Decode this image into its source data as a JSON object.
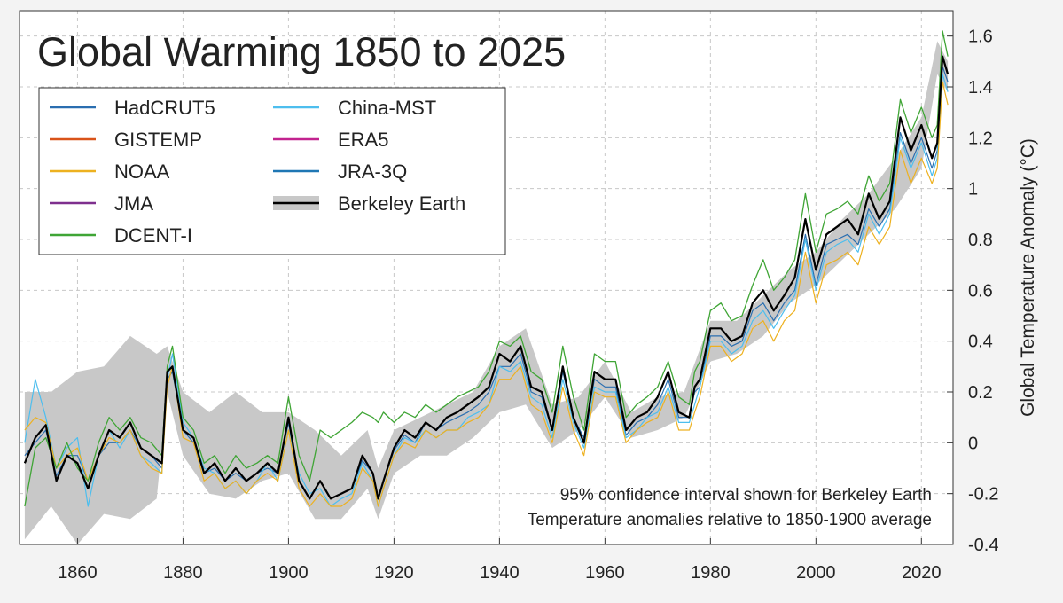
{
  "chart_data": {
    "type": "line",
    "title": "Global Warming 1850 to 2025",
    "xlabel": "",
    "ylabel": "Global  Temperature  Anomaly  (°C)",
    "xlim": [
      1849,
      2026
    ],
    "ylim": [
      -0.4,
      1.7
    ],
    "x_ticks": [
      1860,
      1880,
      1900,
      1920,
      1940,
      1960,
      1980,
      2000,
      2020
    ],
    "x_tick_labels": [
      "1860",
      "1880",
      "1900",
      "1920",
      "1940",
      "1960",
      "1980",
      "2000",
      "2020"
    ],
    "y_ticks": [
      -0.4,
      -0.2,
      0,
      0.2,
      0.4,
      0.6,
      0.8,
      1,
      1.2,
      1.4,
      1.6
    ],
    "y_tick_labels": [
      "-0.4",
      "-0.2",
      "0",
      "0.2",
      "0.4",
      "0.6",
      "0.8",
      "1",
      "1.2",
      "1.4",
      "1.6"
    ],
    "grid": true,
    "y_axis_side": "right",
    "legend_position": "top-left",
    "annotations": [
      "95% confidence interval shown for Berkeley Earth",
      "Temperature anomalies relative to 1850-1900 average"
    ],
    "legend_items": [
      {
        "name": "HadCRUT5",
        "color": "#2a6eb0",
        "kind": "line"
      },
      {
        "name": "GISTEMP",
        "color": "#d95319",
        "kind": "line"
      },
      {
        "name": "NOAA",
        "color": "#edb120",
        "kind": "line"
      },
      {
        "name": "JMA",
        "color": "#7e2f8e",
        "kind": "line"
      },
      {
        "name": "DCENT-I",
        "color": "#3fa535",
        "kind": "line"
      },
      {
        "name": "China-MST",
        "color": "#4dbeee",
        "kind": "line"
      },
      {
        "name": "ERA5",
        "color": "#c2238f",
        "kind": "line"
      },
      {
        "name": "JRA-3Q",
        "color": "#1f77b4",
        "kind": "line"
      },
      {
        "name": "Berkeley Earth",
        "color": "#000000",
        "kind": "line+band",
        "band_color": "#c8c8c8"
      }
    ],
    "band": {
      "x": [
        1850,
        1855,
        1860,
        1865,
        1870,
        1875,
        1877,
        1880,
        1885,
        1890,
        1895,
        1900,
        1905,
        1910,
        1915,
        1917,
        1920,
        1925,
        1930,
        1935,
        1940,
        1945,
        1950,
        1955,
        1960,
        1965,
        1970,
        1975,
        1980,
        1985,
        1990,
        1995,
        2000,
        2005,
        2010,
        2015,
        2020,
        2023,
        2025
      ],
      "lower": [
        -0.38,
        -0.25,
        -0.4,
        -0.28,
        -0.3,
        -0.22,
        0.2,
        -0.05,
        -0.2,
        -0.22,
        -0.15,
        -0.12,
        -0.3,
        -0.3,
        -0.18,
        -0.3,
        -0.12,
        -0.05,
        -0.05,
        0.02,
        0.12,
        0.15,
        -0.02,
        0.05,
        0.18,
        0.02,
        0.05,
        0.1,
        0.32,
        0.35,
        0.42,
        0.55,
        0.62,
        0.72,
        0.82,
        0.92,
        1.08,
        1.45,
        1.38
      ],
      "upper": [
        0.2,
        0.2,
        0.28,
        0.3,
        0.42,
        0.35,
        0.38,
        0.2,
        0.12,
        0.2,
        0.12,
        0.12,
        0.05,
        -0.05,
        0.05,
        -0.1,
        0.05,
        0.1,
        0.15,
        0.2,
        0.38,
        0.45,
        0.15,
        0.18,
        0.32,
        0.12,
        0.18,
        0.2,
        0.48,
        0.48,
        0.58,
        0.68,
        0.75,
        0.88,
        0.98,
        1.12,
        1.28,
        1.58,
        1.5
      ]
    },
    "x": [
      1850,
      1852,
      1854,
      1856,
      1858,
      1860,
      1862,
      1864,
      1866,
      1868,
      1870,
      1872,
      1874,
      1876,
      1877,
      1878,
      1880,
      1882,
      1884,
      1886,
      1888,
      1890,
      1892,
      1894,
      1896,
      1898,
      1900,
      1902,
      1904,
      1906,
      1908,
      1910,
      1912,
      1914,
      1916,
      1917,
      1918,
      1920,
      1922,
      1924,
      1926,
      1928,
      1930,
      1932,
      1934,
      1936,
      1938,
      1940,
      1942,
      1944,
      1946,
      1948,
      1950,
      1952,
      1954,
      1956,
      1958,
      1960,
      1962,
      1964,
      1966,
      1968,
      1970,
      1972,
      1974,
      1976,
      1977,
      1978,
      1980,
      1982,
      1984,
      1986,
      1988,
      1990,
      1992,
      1994,
      1996,
      1998,
      2000,
      2002,
      2004,
      2006,
      2008,
      2010,
      2012,
      2014,
      2016,
      2018,
      2020,
      2022,
      2023,
      2024,
      2025
    ],
    "series": [
      {
        "name": "Berkeley Earth",
        "color": "#000000",
        "width": 2.2,
        "values": [
          -0.08,
          0.02,
          0.07,
          -0.15,
          -0.05,
          -0.08,
          -0.18,
          -0.05,
          0.05,
          0.02,
          0.08,
          -0.02,
          -0.05,
          -0.08,
          0.28,
          0.3,
          0.05,
          0.02,
          -0.12,
          -0.08,
          -0.15,
          -0.1,
          -0.15,
          -0.12,
          -0.08,
          -0.12,
          0.1,
          -0.15,
          -0.22,
          -0.15,
          -0.22,
          -0.2,
          -0.18,
          -0.05,
          -0.12,
          -0.22,
          -0.15,
          -0.02,
          0.05,
          0.02,
          0.08,
          0.05,
          0.1,
          0.12,
          0.15,
          0.18,
          0.22,
          0.35,
          0.32,
          0.38,
          0.22,
          0.2,
          0.05,
          0.3,
          0.1,
          0.0,
          0.28,
          0.25,
          0.25,
          0.05,
          0.1,
          0.12,
          0.18,
          0.28,
          0.12,
          0.1,
          0.22,
          0.25,
          0.45,
          0.45,
          0.4,
          0.42,
          0.55,
          0.6,
          0.52,
          0.58,
          0.65,
          0.88,
          0.68,
          0.82,
          0.85,
          0.88,
          0.82,
          0.98,
          0.88,
          0.95,
          1.28,
          1.15,
          1.25,
          1.12,
          1.18,
          1.52,
          1.45
        ]
      },
      {
        "name": "HadCRUT5",
        "color": "#2a6eb0",
        "width": 1.2,
        "values": [
          -0.05,
          0.0,
          0.05,
          -0.13,
          -0.05,
          -0.05,
          -0.15,
          -0.05,
          0.0,
          0.0,
          0.05,
          -0.02,
          -0.05,
          -0.1,
          0.25,
          0.28,
          0.05,
          0.0,
          -0.12,
          -0.1,
          -0.15,
          -0.12,
          -0.15,
          -0.12,
          -0.1,
          -0.12,
          0.08,
          -0.15,
          -0.22,
          -0.15,
          -0.22,
          -0.2,
          -0.18,
          -0.07,
          -0.12,
          -0.22,
          -0.15,
          -0.03,
          0.03,
          0.0,
          0.08,
          0.05,
          0.08,
          0.1,
          0.12,
          0.15,
          0.2,
          0.3,
          0.3,
          0.35,
          0.2,
          0.18,
          0.05,
          0.28,
          0.1,
          0.02,
          0.25,
          0.22,
          0.22,
          0.03,
          0.08,
          0.1,
          0.15,
          0.25,
          0.1,
          0.1,
          0.2,
          0.22,
          0.42,
          0.42,
          0.38,
          0.4,
          0.52,
          0.55,
          0.48,
          0.55,
          0.6,
          0.82,
          0.62,
          0.78,
          0.8,
          0.82,
          0.78,
          0.92,
          0.85,
          0.92,
          1.22,
          1.1,
          1.2,
          1.08,
          1.15,
          1.48,
          1.42
        ]
      },
      {
        "name": "China-MST",
        "color": "#4dbeee",
        "width": 1.2,
        "values": [
          0.0,
          0.25,
          0.1,
          -0.1,
          -0.02,
          0.02,
          -0.25,
          -0.05,
          0.05,
          -0.02,
          0.05,
          -0.05,
          -0.08,
          -0.12,
          0.25,
          0.35,
          0.08,
          0.02,
          -0.1,
          -0.12,
          -0.18,
          -0.15,
          -0.2,
          -0.15,
          -0.08,
          -0.15,
          0.05,
          -0.12,
          -0.2,
          -0.18,
          -0.25,
          -0.22,
          -0.2,
          -0.08,
          -0.15,
          -0.25,
          -0.18,
          -0.05,
          0.02,
          0.0,
          0.05,
          0.02,
          0.05,
          0.05,
          0.1,
          0.12,
          0.15,
          0.3,
          0.28,
          0.32,
          0.18,
          0.15,
          0.02,
          0.25,
          0.08,
          -0.02,
          0.22,
          0.2,
          0.2,
          0.02,
          0.05,
          0.1,
          0.12,
          0.22,
          0.08,
          0.08,
          0.15,
          0.22,
          0.4,
          0.4,
          0.35,
          0.38,
          0.48,
          0.52,
          0.45,
          0.52,
          0.58,
          0.8,
          0.6,
          0.75,
          0.78,
          0.8,
          0.75,
          0.9,
          0.82,
          0.9,
          1.2,
          1.08,
          1.18,
          1.05,
          1.12,
          1.45,
          1.38
        ]
      },
      {
        "name": "NOAA",
        "color": "#edb120",
        "width": 1.2,
        "values": [
          0.05,
          0.1,
          0.08,
          -0.1,
          -0.05,
          -0.02,
          -0.15,
          -0.05,
          0.02,
          0.0,
          0.05,
          -0.05,
          -0.1,
          -0.12,
          0.22,
          0.3,
          0.02,
          0.0,
          -0.15,
          -0.12,
          -0.18,
          -0.15,
          -0.2,
          -0.15,
          -0.12,
          -0.15,
          0.05,
          -0.18,
          -0.25,
          -0.2,
          -0.25,
          -0.25,
          -0.22,
          -0.1,
          -0.15,
          -0.25,
          -0.18,
          -0.05,
          0.0,
          -0.02,
          0.05,
          0.02,
          0.05,
          0.05,
          0.08,
          0.1,
          0.15,
          0.25,
          0.25,
          0.3,
          0.15,
          0.12,
          0.0,
          0.22,
          0.05,
          -0.05,
          0.2,
          0.18,
          0.18,
          0.0,
          0.05,
          0.08,
          0.1,
          0.2,
          0.05,
          0.05,
          0.12,
          0.18,
          0.38,
          0.38,
          0.32,
          0.35,
          0.45,
          0.48,
          0.4,
          0.48,
          0.52,
          0.75,
          0.55,
          0.7,
          0.72,
          0.75,
          0.7,
          0.85,
          0.78,
          0.85,
          1.15,
          1.02,
          1.12,
          1.02,
          1.08,
          1.42,
          1.33
        ]
      },
      {
        "name": "DCENT-I",
        "color": "#3fa535",
        "width": 1.3,
        "values": [
          -0.25,
          -0.02,
          0.02,
          -0.1,
          0.0,
          -0.1,
          -0.15,
          0.0,
          0.1,
          0.05,
          0.1,
          0.02,
          0.0,
          -0.05,
          0.3,
          0.38,
          0.1,
          0.05,
          -0.08,
          -0.05,
          -0.12,
          -0.05,
          -0.1,
          -0.08,
          -0.05,
          -0.08,
          0.18,
          -0.05,
          -0.15,
          0.05,
          0.02,
          0.05,
          0.08,
          0.12,
          0.1,
          0.08,
          0.12,
          0.08,
          0.12,
          0.1,
          0.15,
          0.12,
          0.15,
          0.18,
          0.2,
          0.22,
          0.28,
          0.4,
          0.38,
          0.42,
          0.28,
          0.25,
          0.12,
          0.38,
          0.18,
          0.05,
          0.35,
          0.32,
          0.32,
          0.1,
          0.15,
          0.18,
          0.22,
          0.32,
          0.18,
          0.15,
          0.28,
          0.32,
          0.52,
          0.55,
          0.48,
          0.5,
          0.62,
          0.72,
          0.6,
          0.65,
          0.72,
          0.98,
          0.75,
          0.9,
          0.92,
          0.95,
          0.9,
          1.05,
          0.95,
          1.02,
          1.35,
          1.22,
          1.32,
          1.2,
          1.25,
          1.62,
          1.52
        ]
      }
    ]
  }
}
